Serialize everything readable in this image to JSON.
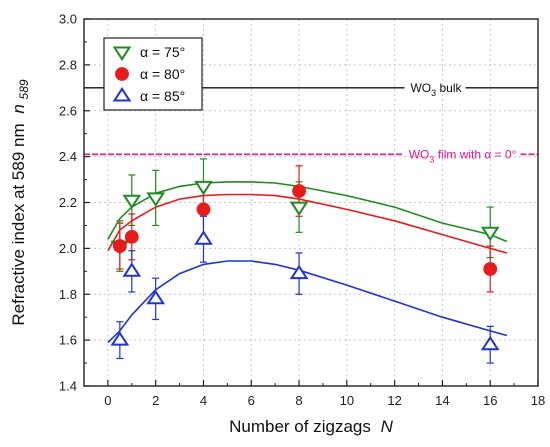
{
  "chart_data": {
    "type": "scatter",
    "x_label": {
      "text": "Number of zigzags",
      "var": "N"
    },
    "y_label": {
      "text": "Refractive index at 589 nm",
      "var": "n",
      "sub": "589"
    },
    "xlim": [
      -1,
      18
    ],
    "ylim": [
      1.4,
      3.0
    ],
    "x_ticks": [
      "0",
      "2",
      "4",
      "6",
      "8",
      "10",
      "12",
      "14",
      "16",
      "18"
    ],
    "y_ticks": [
      "1.4",
      "1.6",
      "1.8",
      "2.0",
      "2.2",
      "2.4",
      "2.6",
      "2.8",
      "3.0"
    ],
    "grid": true,
    "legend_position": "top-left",
    "series": [
      {
        "name": "α = 75°",
        "marker": "triangle-down",
        "color": "#1e8c1e",
        "points": [
          {
            "x": 0.5,
            "y": 2.01,
            "err": 0.11
          },
          {
            "x": 1,
            "y": 2.21,
            "err": 0.11
          },
          {
            "x": 2,
            "y": 2.22,
            "err": 0.12
          },
          {
            "x": 4,
            "y": 2.27,
            "err": 0.12
          },
          {
            "x": 8,
            "y": 2.18,
            "err": 0.11
          },
          {
            "x": 16,
            "y": 2.07,
            "err": 0.11
          }
        ],
        "fit": [
          [
            0,
            2.04
          ],
          [
            0.5,
            2.13
          ],
          [
            1,
            2.18
          ],
          [
            2,
            2.24
          ],
          [
            3,
            2.27
          ],
          [
            4,
            2.285
          ],
          [
            5,
            2.29
          ],
          [
            6,
            2.29
          ],
          [
            7,
            2.285
          ],
          [
            8,
            2.27
          ],
          [
            10,
            2.23
          ],
          [
            12,
            2.18
          ],
          [
            14,
            2.11
          ],
          [
            16,
            2.06
          ],
          [
            16.7,
            2.03
          ]
        ]
      },
      {
        "name": "α = 80°",
        "marker": "circle",
        "color": "#e81a1a",
        "points": [
          {
            "x": 0.5,
            "y": 2.01,
            "err": 0.1
          },
          {
            "x": 1,
            "y": 2.05,
            "err": 0.1
          },
          {
            "x": 4,
            "y": 2.17,
            "err": 0.12
          },
          {
            "x": 8,
            "y": 2.25,
            "err": 0.11
          },
          {
            "x": 16,
            "y": 1.91,
            "err": 0.1
          }
        ],
        "fit": [
          [
            0,
            1.99
          ],
          [
            0.5,
            2.08
          ],
          [
            1,
            2.12
          ],
          [
            2,
            2.18
          ],
          [
            3,
            2.215
          ],
          [
            4,
            2.23
          ],
          [
            5,
            2.235
          ],
          [
            6,
            2.235
          ],
          [
            7,
            2.23
          ],
          [
            8,
            2.215
          ],
          [
            10,
            2.17
          ],
          [
            12,
            2.12
          ],
          [
            14,
            2.06
          ],
          [
            16,
            2.0
          ],
          [
            16.7,
            1.98
          ]
        ]
      },
      {
        "name": "α = 85°",
        "marker": "triangle-up",
        "color": "#1e33d6",
        "points": [
          {
            "x": 0.5,
            "y": 1.6,
            "err": 0.08
          },
          {
            "x": 1,
            "y": 1.9,
            "err": 0.09
          },
          {
            "x": 2,
            "y": 1.78,
            "err": 0.09
          },
          {
            "x": 4,
            "y": 2.04,
            "err": 0.1
          },
          {
            "x": 8,
            "y": 1.89,
            "err": 0.09
          },
          {
            "x": 16,
            "y": 1.58,
            "err": 0.08
          }
        ],
        "fit": [
          [
            0,
            1.59
          ],
          [
            0.5,
            1.64
          ],
          [
            1,
            1.71
          ],
          [
            2,
            1.82
          ],
          [
            3,
            1.89
          ],
          [
            4,
            1.93
          ],
          [
            5,
            1.945
          ],
          [
            6,
            1.945
          ],
          [
            7,
            1.93
          ],
          [
            8,
            1.905
          ],
          [
            10,
            1.84
          ],
          [
            12,
            1.77
          ],
          [
            14,
            1.7
          ],
          [
            16,
            1.64
          ],
          [
            16.7,
            1.62
          ]
        ]
      }
    ],
    "reference_lines": [
      {
        "y": 2.7,
        "label_main": "WO",
        "label_sub": "3",
        "label_rest": " bulk",
        "color": "#111111"
      },
      {
        "y": 2.41,
        "label_main": "WO",
        "label_sub": "3",
        "label_rest": " film with α = 0°",
        "color": "#e6198c",
        "dashed": true
      }
    ]
  }
}
